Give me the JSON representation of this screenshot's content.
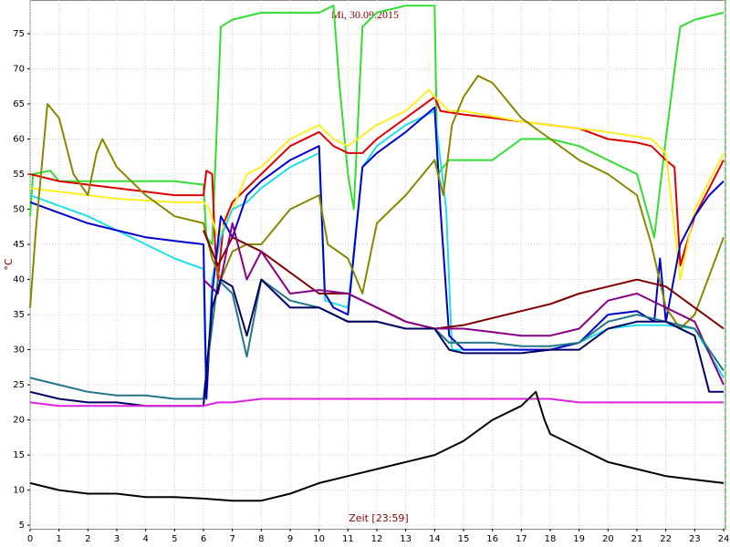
{
  "chart_data": {
    "type": "line",
    "title": "Mi, 30.09.2015",
    "x_label": "Zeit [23:59]",
    "y_label": "°C",
    "xlim": [
      0,
      24
    ],
    "ylim": [
      4.5,
      79.8
    ],
    "xticks": [
      0,
      1,
      2,
      3,
      4,
      5,
      6,
      7,
      8,
      9,
      10,
      11,
      12,
      13,
      14,
      15,
      16,
      17,
      18,
      19,
      20,
      21,
      22,
      23,
      24
    ],
    "yticks": [
      5,
      10,
      15,
      20,
      25,
      30,
      35,
      40,
      45,
      50,
      55,
      60,
      65,
      70,
      75
    ],
    "grid": true,
    "series": [
      {
        "color": "#33dd33",
        "x": [
          0,
          0.1,
          0.7,
          1,
          2,
          3,
          4,
          5,
          6,
          6.1,
          6.3,
          6.6,
          7,
          8,
          9,
          10,
          10.5,
          10.7,
          11,
          11.2,
          11.5,
          12,
          13,
          14,
          14.1,
          14.5,
          15,
          16,
          17,
          18,
          19,
          20,
          21,
          21.4,
          21.6,
          21.8,
          22,
          22.4,
          22.5,
          23,
          24
        ],
        "values": [
          49,
          55,
          55.5,
          54,
          54,
          54,
          54,
          54,
          53.5,
          46,
          45,
          76,
          77,
          78,
          78,
          78,
          79,
          68,
          55,
          50,
          76,
          78,
          79,
          79,
          55,
          57,
          57,
          57,
          60,
          60,
          59,
          57,
          55,
          49,
          46,
          53,
          60,
          73,
          76,
          77,
          78
        ]
      },
      {
        "color": "#dd0000",
        "x": [
          0,
          1,
          3,
          5,
          6,
          6.1,
          6.3,
          6.4,
          6.5,
          6.7,
          7,
          8,
          9,
          10,
          10.5,
          11,
          11.5,
          12,
          13,
          14,
          14.2,
          15,
          16,
          17,
          18,
          19,
          20,
          21,
          21.5,
          22,
          22.3,
          22.5,
          23,
          23.5,
          24
        ],
        "values": [
          55,
          54,
          53,
          52,
          52,
          55.5,
          55,
          45,
          40,
          48,
          51,
          55,
          59,
          61,
          59,
          58,
          58,
          60,
          63,
          66,
          64,
          63.5,
          63,
          62.5,
          62,
          61.5,
          60,
          59.5,
          59,
          57,
          56,
          42,
          49,
          53,
          57
        ]
      },
      {
        "color": "#ffee22",
        "x": [
          0,
          2,
          3,
          5,
          6,
          6.2,
          6.5,
          7,
          7.5,
          8,
          9,
          10,
          10.5,
          11,
          12,
          13,
          13.8,
          14,
          14.5,
          15,
          17,
          20,
          21.5,
          22,
          22.5,
          23,
          24
        ],
        "values": [
          53,
          52,
          51.5,
          51,
          51,
          50,
          46,
          50,
          55,
          56,
          60,
          62,
          60,
          59,
          62,
          64,
          67,
          66,
          64,
          64,
          62.5,
          61,
          60,
          58,
          40,
          50,
          58
        ]
      },
      {
        "color": "#22ddee",
        "x": [
          0,
          1,
          2,
          3,
          4,
          5,
          6,
          6.1,
          6.3,
          6.6,
          7,
          7.5,
          8,
          9,
          10,
          10.2,
          11,
          11.5,
          12,
          13,
          14,
          14.4,
          14.6,
          15,
          16,
          17,
          18,
          19,
          20,
          21,
          22,
          23,
          24
        ],
        "values": [
          52,
          50.5,
          49,
          47,
          45,
          43,
          41.5,
          23,
          40,
          46,
          50,
          51,
          53,
          56,
          58,
          37,
          36,
          56,
          59,
          62,
          64,
          50,
          30,
          30,
          30,
          30,
          30,
          31,
          33,
          33.5,
          33.5,
          33,
          26
        ]
      },
      {
        "color": "#0000cc",
        "x": [
          0,
          1,
          2,
          3,
          4,
          5,
          6,
          6.1,
          6.3,
          6.6,
          7,
          7.5,
          8,
          9,
          10,
          10.2,
          10.5,
          11,
          11.5,
          12,
          13,
          14,
          14.2,
          14.5,
          15,
          16,
          17,
          18,
          19,
          20,
          21,
          21.6,
          21.8,
          22,
          22.5,
          23,
          23.5,
          24
        ],
        "values": [
          51,
          49.5,
          48,
          47,
          46,
          45.5,
          45,
          23,
          38,
          49,
          46,
          52,
          54,
          57,
          59,
          38,
          36,
          35,
          56,
          58,
          61,
          64.5,
          50,
          32,
          30,
          30,
          30,
          30,
          31,
          35,
          35.5,
          34,
          43,
          34,
          45,
          49,
          52,
          54
        ]
      },
      {
        "color": "#888800",
        "x": [
          0,
          0.2,
          0.6,
          1,
          1.5,
          2,
          2.3,
          2.5,
          3,
          3.5,
          4,
          5,
          6,
          6.3,
          6.6,
          7,
          7.5,
          8,
          9,
          10,
          10.3,
          11,
          11.5,
          12,
          13,
          14,
          14.3,
          14.6,
          15,
          15.5,
          16,
          17,
          18,
          19,
          20,
          21,
          21.5,
          22,
          22.5,
          23,
          24
        ],
        "values": [
          36,
          47,
          65,
          63,
          55,
          52,
          58,
          60,
          56,
          54,
          52,
          49,
          48,
          43,
          40,
          44,
          45,
          45,
          50,
          52,
          45,
          43,
          38,
          48,
          52,
          57,
          52,
          62,
          66,
          69,
          68,
          63,
          60,
          57,
          55,
          52,
          45,
          36,
          33,
          35,
          46
        ]
      },
      {
        "color": "#800000",
        "x": [
          6,
          6.5,
          7,
          8,
          9,
          10,
          11,
          12,
          13,
          14,
          15,
          16,
          17,
          18,
          19,
          20,
          21,
          22,
          23,
          24
        ],
        "values": [
          47,
          42,
          46,
          44,
          41,
          38,
          38,
          36,
          34,
          33,
          33.5,
          34.5,
          35.5,
          36.5,
          38,
          39,
          40,
          39,
          36,
          33
        ]
      },
      {
        "color": "#880088",
        "x": [
          6,
          6.5,
          7,
          7.5,
          8,
          9,
          10,
          11,
          12,
          13,
          14,
          15,
          16,
          17,
          18,
          19,
          20,
          21,
          22,
          23,
          24
        ],
        "values": [
          40,
          38,
          48,
          40,
          44,
          38,
          38.5,
          38,
          36,
          34,
          33,
          33,
          32.5,
          32,
          32,
          33,
          37,
          38,
          36,
          34,
          25
        ]
      },
      {
        "color": "#227788",
        "x": [
          0,
          1,
          2,
          3,
          4,
          5,
          6,
          6.2,
          6.5,
          7,
          7.5,
          8,
          9,
          10,
          11,
          12,
          13,
          14,
          14.5,
          15,
          16,
          17,
          18,
          19,
          20,
          21,
          22,
          23,
          24
        ],
        "values": [
          26,
          25,
          24,
          23.5,
          23.5,
          23,
          23,
          30,
          40,
          38,
          29,
          40,
          37,
          36,
          34,
          34,
          33,
          33,
          31,
          31,
          31,
          30.5,
          30.5,
          31,
          34,
          35,
          34,
          33,
          27
        ]
      },
      {
        "color": "#000066",
        "x": [
          0,
          1,
          2,
          3,
          4,
          5,
          6,
          6.3,
          6.6,
          7,
          7.5,
          8,
          9,
          10,
          11,
          12,
          13,
          14,
          14.5,
          15,
          16,
          17,
          18,
          19,
          20,
          21,
          22,
          23,
          23.5,
          24
        ],
        "values": [
          24,
          23,
          22.5,
          22.5,
          22,
          22,
          22,
          36,
          40,
          39,
          32,
          40,
          36,
          36,
          34,
          34,
          33,
          33,
          30,
          29.5,
          29.5,
          29.5,
          30,
          30,
          33,
          34,
          34,
          32,
          24,
          24
        ]
      },
      {
        "color": "#dd22dd",
        "x": [
          0,
          1,
          2,
          3,
          4,
          5,
          6,
          6.5,
          7,
          8,
          9,
          10,
          11,
          12,
          13,
          14,
          15,
          16,
          17,
          18,
          19,
          20,
          21,
          22,
          23,
          24
        ],
        "values": [
          22.5,
          22,
          22,
          22,
          22,
          22,
          22,
          22.5,
          22.5,
          23,
          23,
          23,
          23,
          23,
          23,
          23,
          23,
          23,
          23,
          23,
          22.5,
          22.5,
          22.5,
          22.5,
          22.5,
          22.5
        ]
      },
      {
        "color": "#000000",
        "x": [
          0,
          1,
          2,
          3,
          4,
          5,
          6,
          7,
          8,
          9,
          10,
          11,
          12,
          13,
          14,
          15,
          16,
          17,
          17.5,
          17.8,
          18,
          19,
          20,
          21,
          22,
          23,
          24
        ],
        "values": [
          11,
          10,
          9.5,
          9.5,
          9,
          9,
          8.8,
          8.5,
          8.5,
          9.5,
          11,
          12,
          13,
          14,
          15,
          17,
          20,
          22,
          24,
          20,
          18,
          16,
          14,
          13,
          12,
          11.5,
          11
        ]
      }
    ]
  }
}
